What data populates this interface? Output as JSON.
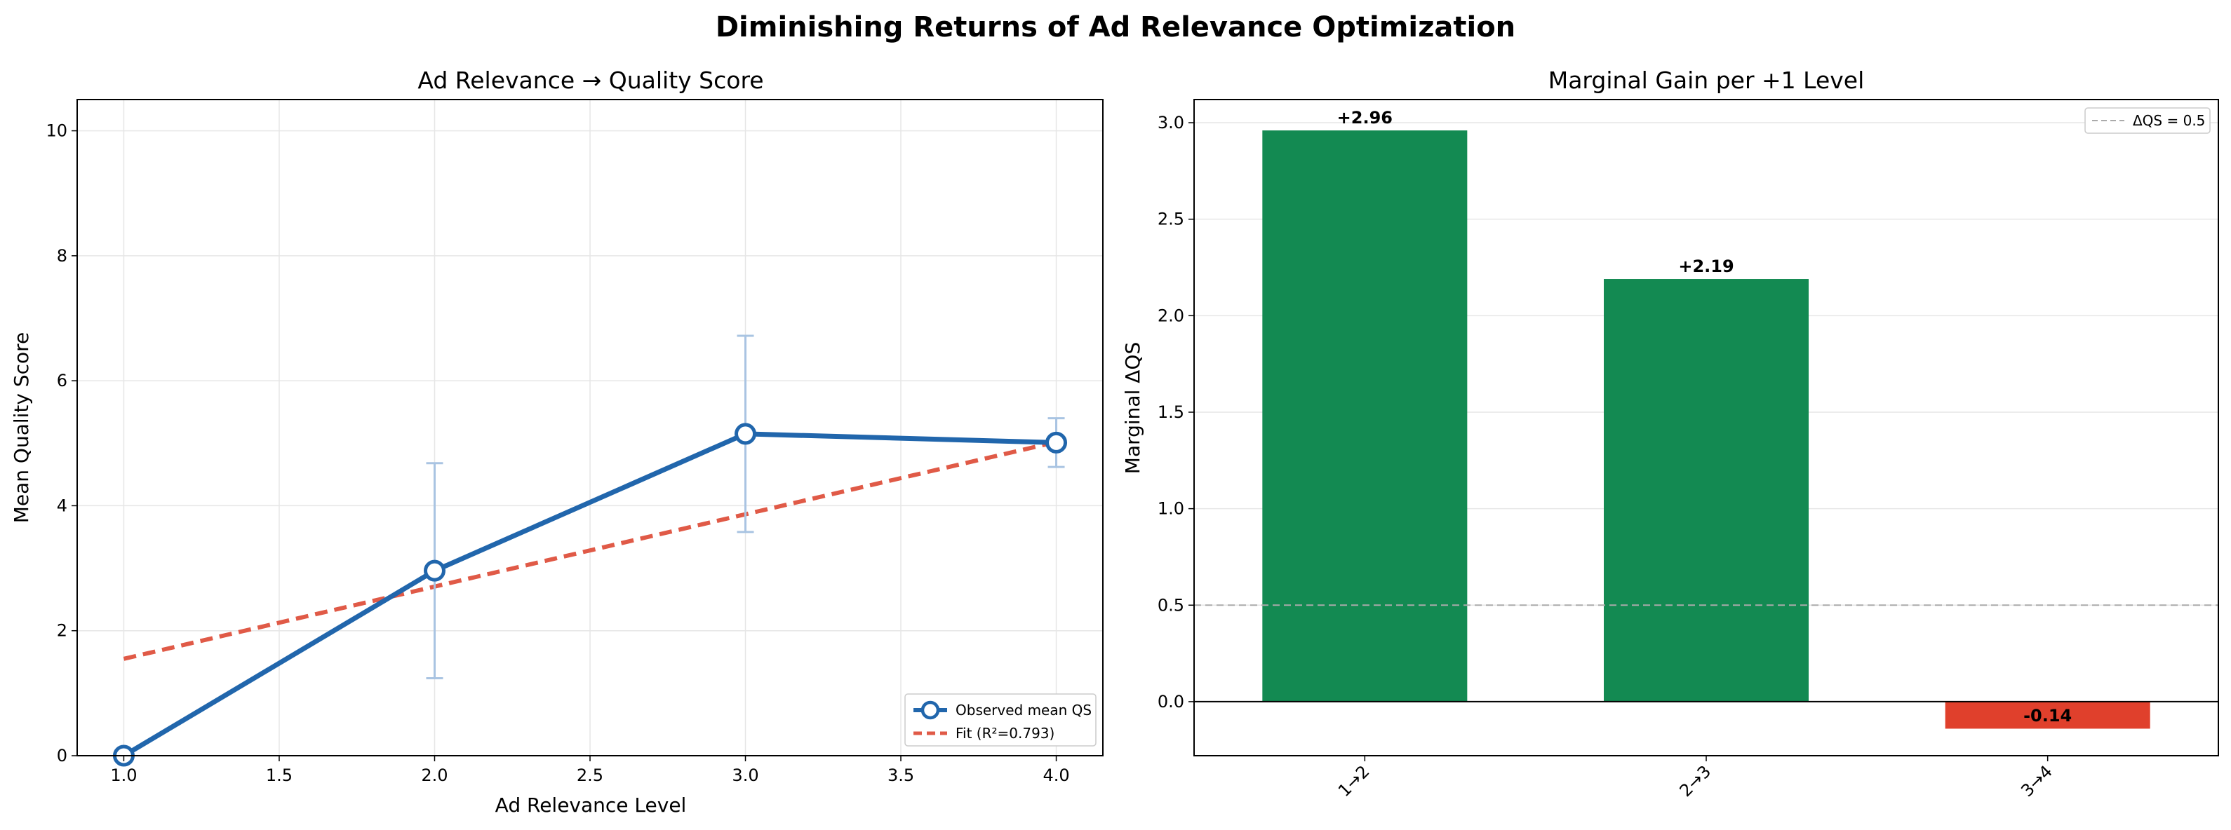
{
  "figure": {
    "title": "Diminishing Returns of Ad Relevance Optimization"
  },
  "chart_data": [
    {
      "type": "line",
      "title": "Ad Relevance → Quality Score",
      "xlabel": "Ad Relevance Level",
      "ylabel": "Mean Quality Score",
      "xlim": [
        0.85,
        4.15
      ],
      "ylim": [
        0,
        10.5
      ],
      "xticks": [
        "1.0",
        "1.5",
        "2.0",
        "2.5",
        "3.0",
        "3.5",
        "4.0"
      ],
      "yticks": [
        "0",
        "2",
        "4",
        "6",
        "8",
        "10"
      ],
      "grid": true,
      "legend_position": "lower-right",
      "series": [
        {
          "name": "Observed mean QS",
          "color": "#2166ac",
          "marker": "open-circle",
          "x": [
            1.0,
            2.0,
            3.0,
            4.0
          ],
          "y": [
            0.0,
            2.96,
            5.15,
            5.01
          ],
          "error": [
            0.0,
            1.72,
            1.57,
            0.39
          ]
        },
        {
          "name": "Fit (R²=0.793)",
          "color": "#e05a47",
          "style": "dashed",
          "x": [
            1.0,
            4.0
          ],
          "y": [
            1.55,
            5.02
          ]
        }
      ]
    },
    {
      "type": "bar",
      "title": "Marginal Gain per +1 Level",
      "xlabel": "",
      "ylabel": "Marginal ΔQS",
      "ylim": [
        -0.28,
        3.12
      ],
      "yticks": [
        "0.0",
        "0.5",
        "1.0",
        "1.5",
        "2.0",
        "2.5",
        "3.0"
      ],
      "categories": [
        "1→2",
        "2→3",
        "3→4"
      ],
      "values": [
        2.96,
        2.19,
        -0.14
      ],
      "value_labels": [
        "+2.96",
        "+2.19",
        "-0.14"
      ],
      "colors": [
        "#138a52",
        "#138a52",
        "#e0402c"
      ],
      "reference_line": {
        "value": 0.5,
        "label": "ΔQS = 0.5",
        "color": "#aaaaaa"
      },
      "grid": true,
      "legend_position": "top-right"
    }
  ]
}
